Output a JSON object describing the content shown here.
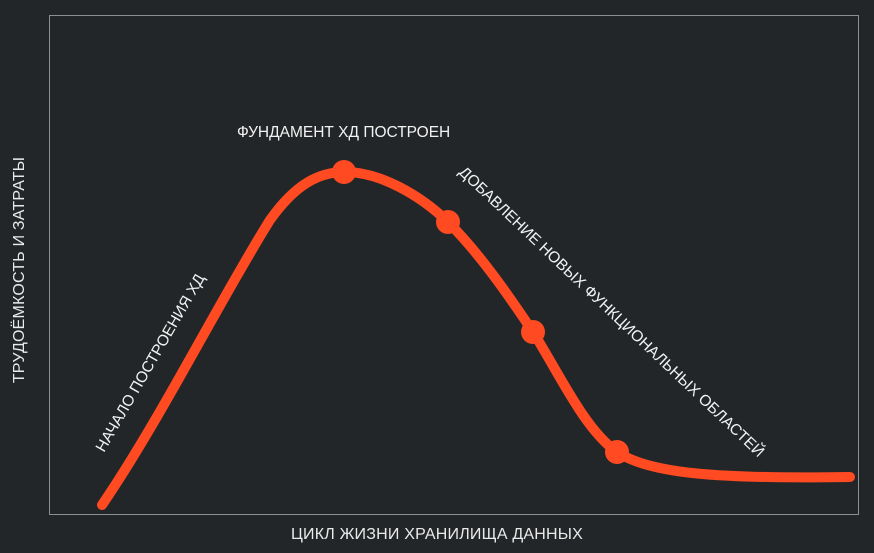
{
  "diagram": {
    "x_axis_label": "ЦИКЛ ЖИЗНИ ХРАНИЛИЩА ДАННЫХ",
    "y_axis_label": "ТРУДОЁМКОСТЬ И ЗАТРАТЫ",
    "annotations": {
      "start": "НАЧАЛО ПОСТРОЕНИЯ ХД",
      "peak": "ФУНДАМЕНТ ХД ПОСТРОЕН",
      "decline": "ДОБАВЛЕНИЕ НОВЫХ ФУНКЦИОНАЛЬНЫХ ОБЛАСТЕЙ"
    },
    "colors": {
      "background": "#232628",
      "frame": "#8c8f93",
      "curve": "#ff4a22",
      "text": "#f2f2f2"
    },
    "milestone_count": 4
  }
}
